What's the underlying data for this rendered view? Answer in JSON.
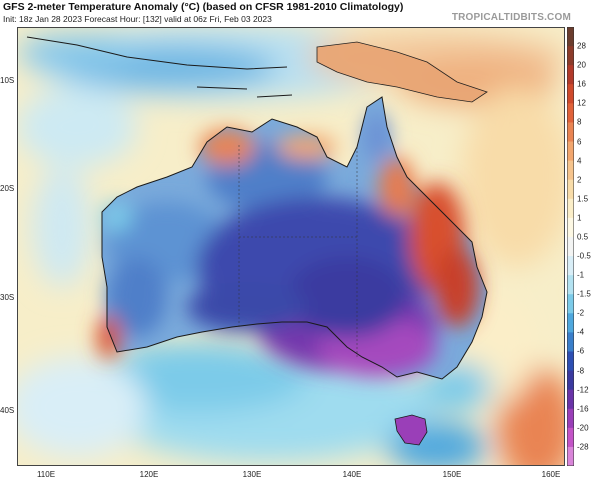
{
  "header": {
    "title": "GFS 2-meter Temperature Anomaly (°C) (based on CFSR 1981-2010 Climatology)",
    "subtitle": "Init: 18z Jan 28 2023   Forecast Hour: [132]   valid at 06z Fri, Feb 03 2023",
    "brand": "TROPICALTIDBITS.COM"
  },
  "map": {
    "lat_labels": [
      "10S",
      "20S",
      "30S",
      "40S"
    ],
    "lon_labels": [
      "110E",
      "120E",
      "130E",
      "140E",
      "150E",
      "160E"
    ]
  },
  "colorbar": {
    "labels": [
      "28",
      "20",
      "16",
      "12",
      "8",
      "6",
      "4",
      "2",
      "1.5",
      "1",
      "0.5",
      "-0.5",
      "-1",
      "-1.5",
      "-2",
      "-4",
      "-6",
      "-8",
      "-12",
      "-16",
      "-20",
      "-28"
    ],
    "colors": [
      "#6b3d2e",
      "#8c3b2a",
      "#b23a2a",
      "#cf4a2c",
      "#e0623a",
      "#e98453",
      "#f2a66e",
      "#f6c48d",
      "#f8dca9",
      "#fbeec8",
      "#fdf8e4",
      "#f3f4f3",
      "#d9eef7",
      "#b3e2f1",
      "#7ccbe9",
      "#4fa8de",
      "#3a7fcb",
      "#2d4fb3",
      "#3b3aa0",
      "#6a34a8",
      "#9a3fb8",
      "#c354c7",
      "#d985d9"
    ]
  }
}
